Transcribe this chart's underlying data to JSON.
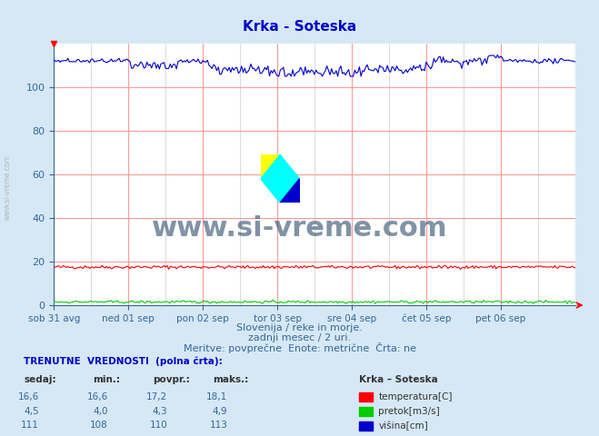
{
  "title": "Krka - Soteska",
  "title_color": "#0000cc",
  "bg_color": "#d6e8f5",
  "plot_bg_color": "#ffffff",
  "grid_color_major": "#ff9999",
  "grid_color_minor": "#cccccc",
  "ylim": [
    0,
    120
  ],
  "yticks": [
    0,
    20,
    40,
    60,
    80,
    100
  ],
  "xlim": [
    0,
    336
  ],
  "xtick_labels": [
    "sob 31 avg",
    "ned 01 sep",
    "pon 02 sep",
    "tor 03 sep",
    "sre 04 sep",
    "čet 05 sep",
    "pet 06 sep"
  ],
  "xtick_positions": [
    0,
    48,
    96,
    144,
    192,
    240,
    288
  ],
  "xlabel_color": "#336699",
  "ylabel_color": "#336699",
  "watermark_text": "www.si-vreme.com",
  "watermark_color": "#1a3a5c",
  "footer_line1": "Slovenija / reke in morje.",
  "footer_line2": "zadnji mesec / 2 uri.",
  "footer_line3": "Meritve: povprečne  Enote: metrične  Črta: ne",
  "label_header": "TRENUTNE  VREDNOSTI  (polna črta):",
  "col_headers": [
    "sedaj:",
    "min.:",
    "povpr.:",
    "maks.:"
  ],
  "row1_vals": [
    "16,6",
    "16,6",
    "17,2",
    "18,1"
  ],
  "row2_vals": [
    "4,5",
    "4,0",
    "4,3",
    "4,9"
  ],
  "row3_vals": [
    "111",
    "108",
    "110",
    "113"
  ],
  "legend_station": "Krka – Soteska",
  "legend_labels": [
    "temperatura[C]",
    "pretok[m3/s]",
    "višina[cm]"
  ],
  "legend_colors": [
    "#ff0000",
    "#00cc00",
    "#0000cc"
  ],
  "n_points": 337,
  "axis_color": "#336699",
  "tick_color": "#336699"
}
